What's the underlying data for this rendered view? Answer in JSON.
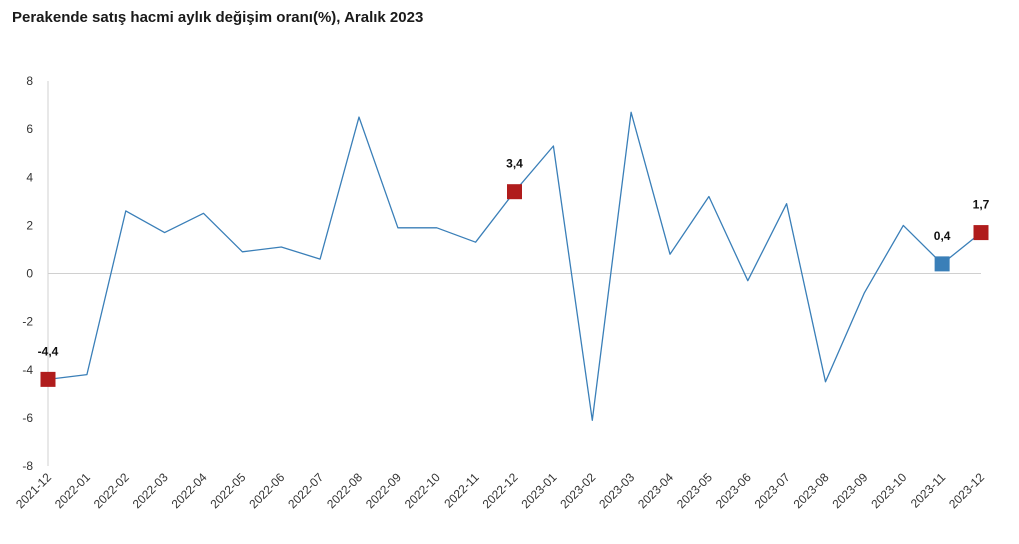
{
  "chart_data": {
    "type": "line",
    "title": "Perakende satış hacmi aylık değişim oranı(%), Aralık 2023",
    "xlabel": "",
    "ylabel": "",
    "ylim": [
      -8,
      8
    ],
    "yticks": [
      "-8",
      "-6",
      "-4",
      "-2",
      "0",
      "2",
      "4",
      "6",
      "8"
    ],
    "grid": false,
    "legend": "none",
    "categories": [
      "2021-12",
      "2022-01",
      "2022-02",
      "2022-03",
      "2022-04",
      "2022-05",
      "2022-06",
      "2022-07",
      "2022-08",
      "2022-09",
      "2022-10",
      "2022-11",
      "2022-12",
      "2023-01",
      "2023-02",
      "2023-03",
      "2023-04",
      "2023-05",
      "2023-06",
      "2023-07",
      "2023-08",
      "2023-09",
      "2023-10",
      "2023-11",
      "2023-12"
    ],
    "series": [
      {
        "values": [
          -4.4,
          -4.2,
          2.6,
          1.7,
          2.5,
          0.9,
          1.1,
          0.6,
          6.5,
          1.9,
          1.9,
          1.3,
          3.4,
          5.3,
          -6.1,
          6.7,
          0.8,
          3.2,
          -0.3,
          2.9,
          -4.5,
          -0.8,
          2.0,
          0.4,
          1.7
        ],
        "color": "#3a7fb8"
      }
    ],
    "highlights": [
      {
        "index": 0,
        "label": "-4,4",
        "color": "#b01c1c"
      },
      {
        "index": 12,
        "label": "3,4",
        "color": "#b01c1c"
      },
      {
        "index": 23,
        "label": "0,4",
        "color": "#3a7fb8"
      },
      {
        "index": 24,
        "label": "1,7",
        "color": "#b01c1c"
      }
    ]
  }
}
